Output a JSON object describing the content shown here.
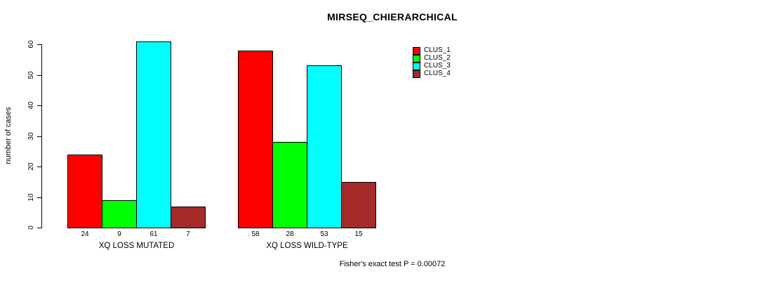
{
  "chart_data": {
    "type": "bar",
    "title": "MIRSEQ_CHIERARCHICAL",
    "ylabel": "number of cases",
    "xlabel": "",
    "categories": [
      "XQ LOSS MUTATED",
      "XQ LOSS WILD-TYPE"
    ],
    "series": [
      {
        "name": "CLUS_1",
        "color": "#ff0000",
        "values": [
          24,
          58
        ]
      },
      {
        "name": "CLUS_2",
        "color": "#00ff00",
        "values": [
          9,
          28
        ]
      },
      {
        "name": "CLUS_3",
        "color": "#00ffff",
        "values": [
          61,
          53
        ]
      },
      {
        "name": "CLUS_4",
        "color": "#a52a2a",
        "values": [
          7,
          15
        ]
      }
    ],
    "ylim": [
      0,
      60
    ],
    "yticks": [
      0,
      10,
      20,
      30,
      40,
      50,
      60
    ],
    "show_bar_value_labels": true,
    "grid": false,
    "legend": {
      "position": "top-right",
      "entries": [
        "CLUS_1",
        "CLUS_2",
        "CLUS_3",
        "CLUS_4"
      ]
    },
    "annotation": "Fisher's exact test P = 0.00072"
  }
}
